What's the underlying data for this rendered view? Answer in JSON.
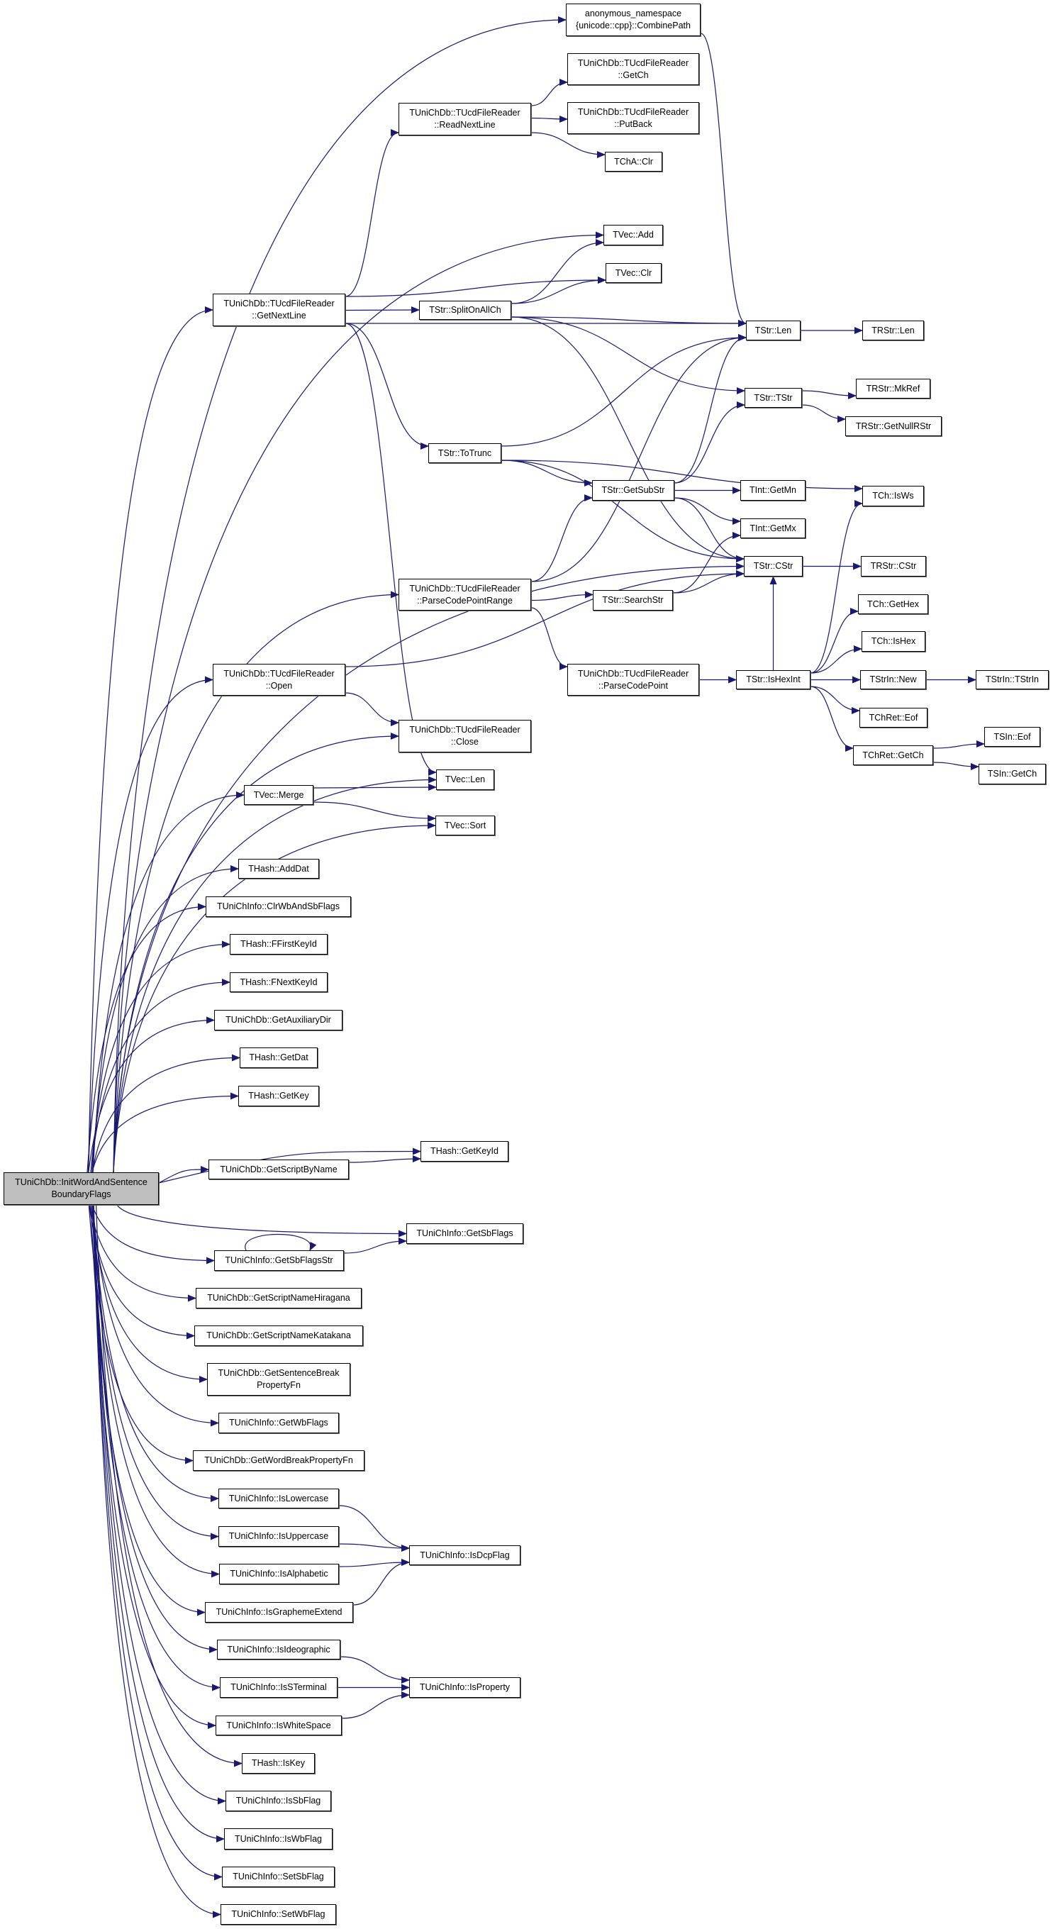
{
  "edge_color": "#191970",
  "root_fill": "#bfbfbf",
  "nodes": {
    "root": "TUniChDb::InitWordAndSentence\nBoundaryFlags",
    "combine": "anonymous_namespace\n{unicode::cpp}::CombinePath",
    "getch": "TUniChDb::TUcdFileReader\n::GetCh",
    "readnext": "TUniChDb::TUcdFileReader\n::ReadNextLine",
    "putback": "TUniChDb::TUcdFileReader\n::PutBack",
    "chaclr": "TChA::Clr",
    "vecadd": "TVec::Add",
    "vecclr": "TVec::Clr",
    "getnext": "TUniChDb::TUcdFileReader\n::GetNextLine",
    "split": "TStr::SplitOnAllCh",
    "strlen": "TStr::Len",
    "rstrlen": "TRStr::Len",
    "mkref": "TRStr::MkRef",
    "tstr": "TStr::TStr",
    "nullr": "TRStr::GetNullRStr",
    "totrunc": "TStr::ToTrunc",
    "getsub": "TStr::GetSubStr",
    "getmn": "TInt::GetMn",
    "isws": "TCh::IsWs",
    "getmx": "TInt::GetMx",
    "cstr": "TStr::CStr",
    "rcstr": "TRStr::CStr",
    "pcpr": "TUniChDb::TUcdFileReader\n::ParseCodePointRange",
    "search": "TStr::SearchStr",
    "gethex": "TCh::GetHex",
    "ishex": "TCh::IsHex",
    "open": "TUniChDb::TUcdFileReader\n::Open",
    "pcp": "TUniChDb::TUcdFileReader\n::ParseCodePoint",
    "ishexint": "TStr::IsHexInt",
    "strinnew": "TStrIn::New",
    "strin": "TStrIn::TStrIn",
    "chreteof": "TChRet::Eof",
    "close": "TUniChDb::TUcdFileReader\n::Close",
    "sineof": "TSIn::Eof",
    "chretgetch": "TChRet::GetCh",
    "singetch": "TSIn::GetCh",
    "veclen": "TVec::Len",
    "merge": "TVec::Merge",
    "sort": "TVec::Sort",
    "adddat": "THash::AddDat",
    "clrwb": "TUniChInfo::ClrWbAndSbFlags",
    "ffirst": "THash::FFirstKeyId",
    "fnext": "THash::FNextKeyId",
    "aux": "TUniChDb::GetAuxiliaryDir",
    "getdat": "THash::GetDat",
    "getkey": "THash::GetKey",
    "getkeyid": "THash::GetKeyId",
    "scriptbyname": "TUniChDb::GetScriptByName",
    "getsbflags": "TUniChInfo::GetSbFlags",
    "getsbflagsstr": "TUniChInfo::GetSbFlagsStr",
    "hira": "TUniChDb::GetScriptNameHiragana",
    "kata": "TUniChDb::GetScriptNameKatakana",
    "sentence": "TUniChDb::GetSentenceBreak\nPropertyFn",
    "getwb": "TUniChInfo::GetWbFlags",
    "wordbreak": "TUniChDb::GetWordBreakPropertyFn",
    "islower": "TUniChInfo::IsLowercase",
    "isupper": "TUniChInfo::IsUppercase",
    "isdcp": "TUniChInfo::IsDcpFlag",
    "isalpha": "TUniChInfo::IsAlphabetic",
    "isgraph": "TUniChInfo::IsGraphemeExtend",
    "isideo": "TUniChInfo::IsIdeographic",
    "isst": "TUniChInfo::IsSTerminal",
    "isprop": "TUniChInfo::IsProperty",
    "iswhite": "TUniChInfo::IsWhiteSpace",
    "iskey": "THash::IsKey",
    "issb": "TUniChInfo::IsSbFlag",
    "iswb": "TUniChInfo::IsWbFlag",
    "setsb": "TUniChInfo::SetSbFlag",
    "setwb": "TUniChInfo::SetWbFlag"
  },
  "edges": [
    [
      "root",
      "combine"
    ],
    [
      "root",
      "vecadd"
    ],
    [
      "root",
      "getnext"
    ],
    [
      "root",
      "pcpr"
    ],
    [
      "root",
      "cstr"
    ],
    [
      "root",
      "open"
    ],
    [
      "root",
      "close"
    ],
    [
      "root",
      "veclen"
    ],
    [
      "root",
      "merge"
    ],
    [
      "root",
      "sort"
    ],
    [
      "root",
      "adddat"
    ],
    [
      "root",
      "clrwb"
    ],
    [
      "root",
      "ffirst"
    ],
    [
      "root",
      "fnext"
    ],
    [
      "root",
      "aux"
    ],
    [
      "root",
      "getdat"
    ],
    [
      "root",
      "getkey"
    ],
    [
      "root",
      "getkeyid"
    ],
    [
      "root",
      "scriptbyname"
    ],
    [
      "root",
      "getsbflags"
    ],
    [
      "root",
      "getsbflagsstr"
    ],
    [
      "root",
      "hira"
    ],
    [
      "root",
      "kata"
    ],
    [
      "root",
      "sentence"
    ],
    [
      "root",
      "getwb"
    ],
    [
      "root",
      "wordbreak"
    ],
    [
      "root",
      "islower"
    ],
    [
      "root",
      "isupper"
    ],
    [
      "root",
      "isalpha"
    ],
    [
      "root",
      "isgraph"
    ],
    [
      "root",
      "isideo"
    ],
    [
      "root",
      "isst"
    ],
    [
      "root",
      "iswhite"
    ],
    [
      "root",
      "iskey"
    ],
    [
      "root",
      "issb"
    ],
    [
      "root",
      "iswb"
    ],
    [
      "root",
      "setsb"
    ],
    [
      "root",
      "setwb"
    ],
    [
      "getnext",
      "readnext"
    ],
    [
      "getnext",
      "strlen"
    ],
    [
      "getnext",
      "vecclr"
    ],
    [
      "getnext",
      "split"
    ],
    [
      "getnext",
      "totrunc"
    ],
    [
      "getnext",
      "veclen"
    ],
    [
      "readnext",
      "getch"
    ],
    [
      "readnext",
      "putback"
    ],
    [
      "readnext",
      "chaclr"
    ],
    [
      "combine",
      "strlen"
    ],
    [
      "split",
      "vecadd"
    ],
    [
      "split",
      "vecclr"
    ],
    [
      "split",
      "strlen"
    ],
    [
      "split",
      "tstr"
    ],
    [
      "split",
      "cstr"
    ],
    [
      "strlen",
      "rstrlen"
    ],
    [
      "tstr",
      "mkref"
    ],
    [
      "tstr",
      "nullr"
    ],
    [
      "totrunc",
      "strlen"
    ],
    [
      "totrunc",
      "getsub"
    ],
    [
      "totrunc",
      "isws"
    ],
    [
      "totrunc",
      "cstr"
    ],
    [
      "getsub",
      "strlen"
    ],
    [
      "getsub",
      "tstr"
    ],
    [
      "getsub",
      "getmn"
    ],
    [
      "getsub",
      "getmx"
    ],
    [
      "getsub",
      "cstr"
    ],
    [
      "cstr",
      "rcstr"
    ],
    [
      "pcpr",
      "strlen"
    ],
    [
      "pcpr",
      "getsub"
    ],
    [
      "pcpr",
      "search"
    ],
    [
      "pcpr",
      "pcp"
    ],
    [
      "search",
      "getmx"
    ],
    [
      "search",
      "cstr"
    ],
    [
      "pcp",
      "ishexint"
    ],
    [
      "ishexint",
      "cstr"
    ],
    [
      "ishexint",
      "isws"
    ],
    [
      "ishexint",
      "gethex"
    ],
    [
      "ishexint",
      "ishex"
    ],
    [
      "ishexint",
      "strinnew"
    ],
    [
      "ishexint",
      "chreteof"
    ],
    [
      "ishexint",
      "chretgetch"
    ],
    [
      "strinnew",
      "strin"
    ],
    [
      "chretgetch",
      "sineof"
    ],
    [
      "chretgetch",
      "singetch"
    ],
    [
      "open",
      "close"
    ],
    [
      "open",
      "cstr"
    ],
    [
      "merge",
      "veclen"
    ],
    [
      "merge",
      "sort"
    ],
    [
      "scriptbyname",
      "getkeyid"
    ],
    [
      "getsbflagsstr",
      "getsbflags"
    ],
    [
      "getsbflagsstr",
      "getsbflagsstr"
    ],
    [
      "islower",
      "isdcp"
    ],
    [
      "isupper",
      "isdcp"
    ],
    [
      "isalpha",
      "isdcp"
    ],
    [
      "isgraph",
      "isdcp"
    ],
    [
      "isideo",
      "isprop"
    ],
    [
      "isst",
      "isprop"
    ],
    [
      "iswhite",
      "isprop"
    ]
  ]
}
